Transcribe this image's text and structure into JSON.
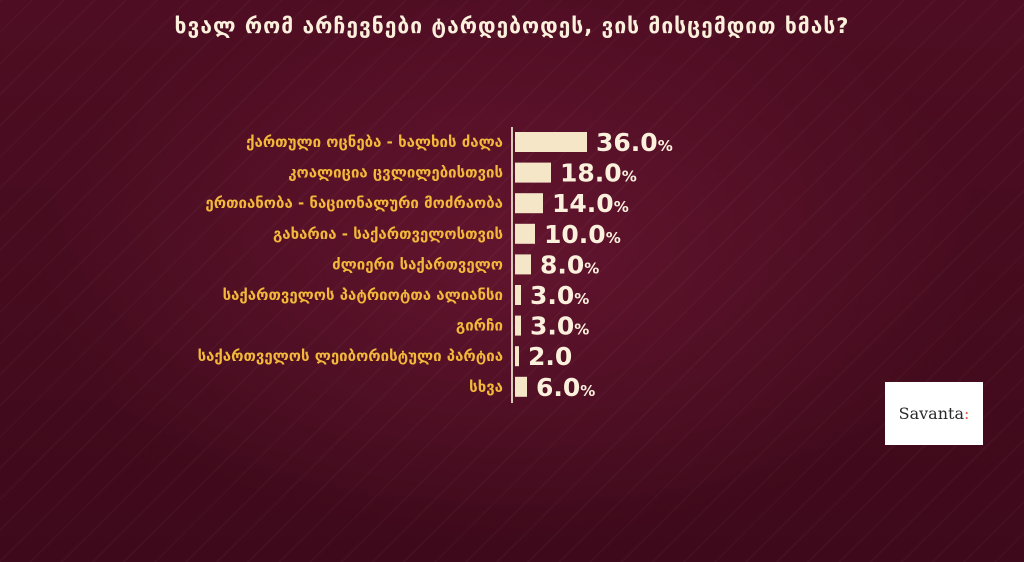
{
  "colors": {
    "background": "#4a0c1f",
    "bar": "#f5e6c8",
    "label": "#f3b83a",
    "value": "#fbf0dc"
  },
  "logo": {
    "text": "Savanta",
    "mark": ":"
  },
  "chart_data": {
    "type": "bar",
    "orientation": "horizontal",
    "title": "ხვალ რომ არჩევნები ტარდებოდეს, ვის მისცემდით ხმას?",
    "xlabel": "",
    "ylabel": "",
    "xlim": [
      0,
      36
    ],
    "grid": false,
    "legend": "none",
    "categories": [
      "ქართული ოცნება - ხალხის ძალა",
      "კოალიცია ცვლილებისთვის",
      "ერთიანობა - ნაციონალური მოძრაობა",
      "გახარია - საქართველოსთვის",
      "ძლიერი საქართველო",
      "საქართველოს პატრიოტთა ალიანსი",
      "გირჩი",
      "საქართველოს ლეიბორისტული პარტია",
      "სხვა"
    ],
    "values": [
      36.0,
      18.0,
      14.0,
      10.0,
      8.0,
      3.0,
      3.0,
      2.0,
      6.0
    ],
    "value_labels": [
      "36.0",
      "18.0",
      "14.0",
      "10.0",
      "8.0",
      "3.0",
      "3.0",
      "2.0",
      "6.0"
    ],
    "value_suffixes": [
      "%",
      "%",
      "%",
      "%",
      "%",
      "%",
      "%",
      "",
      "%"
    ]
  }
}
